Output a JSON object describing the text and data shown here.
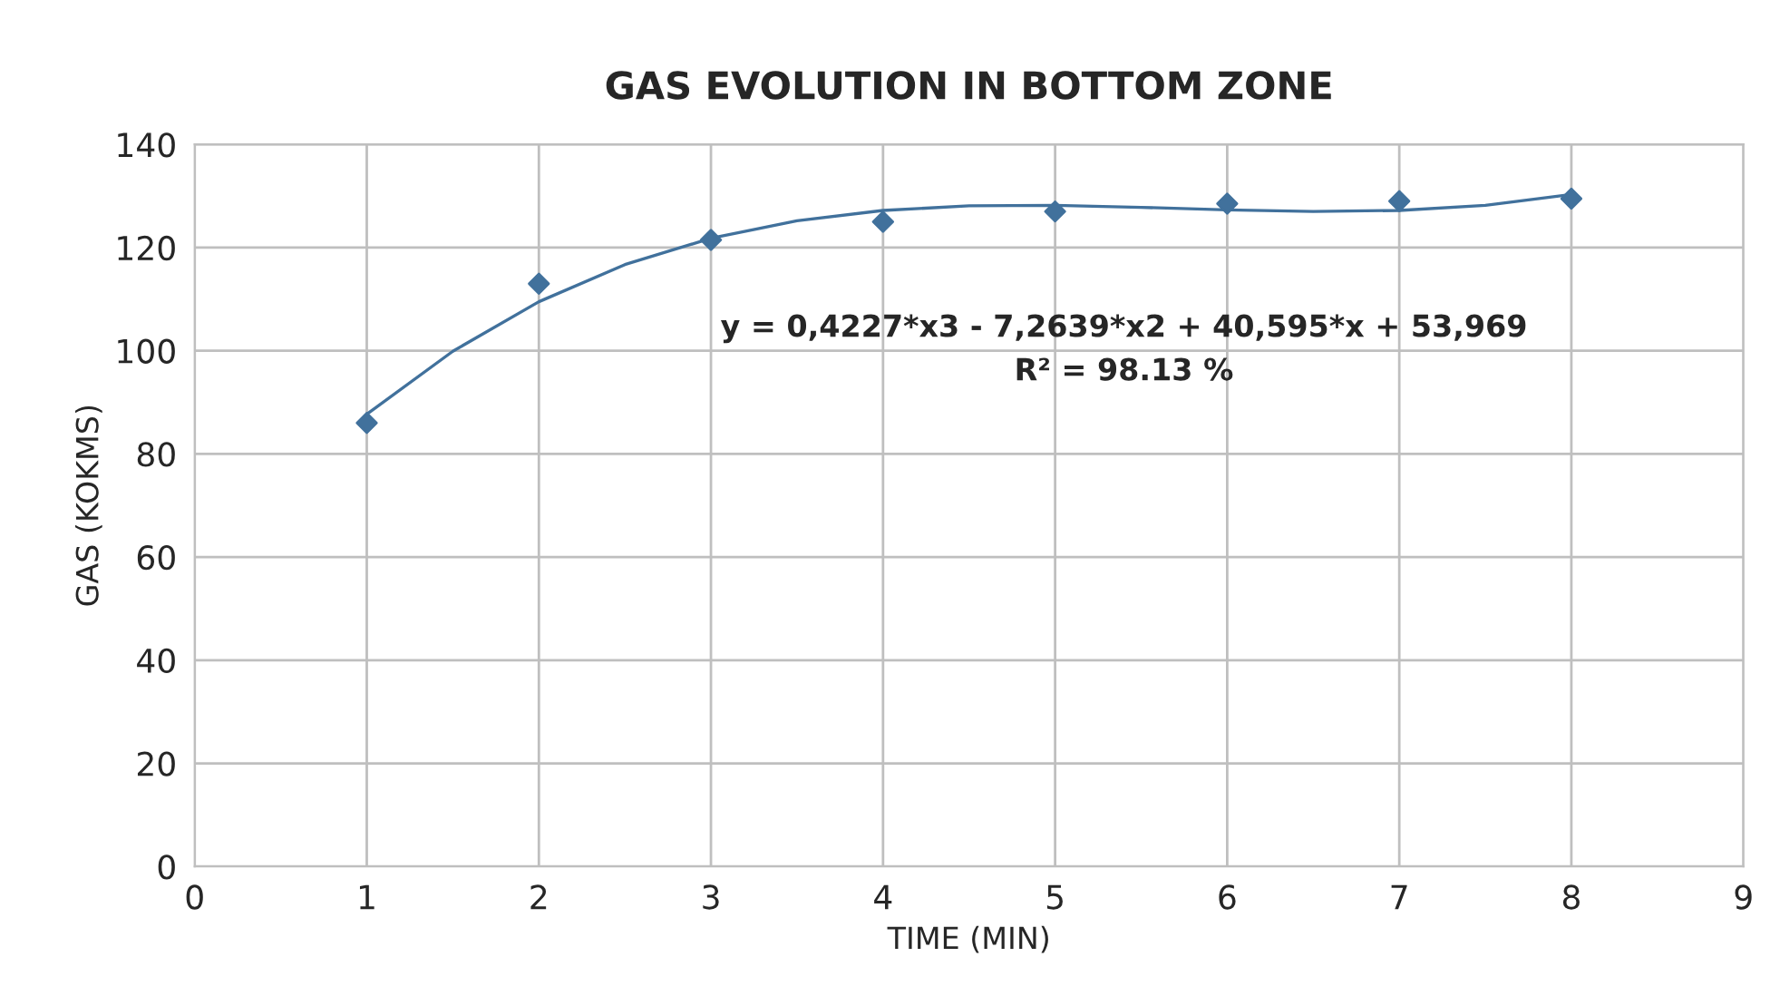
{
  "chart_data": {
    "type": "scatter",
    "title": "GAS EVOLUTION IN BOTTOM ZONE",
    "xlabel": "TIME (MIN)",
    "ylabel": "GAS (KOKMS)",
    "x": [
      1,
      2,
      3,
      4,
      5,
      6,
      7,
      8
    ],
    "series": [
      {
        "color": "#41719c",
        "marker": "diamond",
        "values": [
          86,
          113,
          121.5,
          125,
          127,
          128.5,
          129,
          129.5
        ]
      },
      {
        "type": "line",
        "color": "#41719c",
        "marker": "none",
        "x": [
          1,
          1.5,
          2,
          2.5,
          3,
          3.5,
          4,
          4.5,
          5,
          5.5,
          6,
          6.5,
          7,
          7.5,
          8
        ],
        "values": [
          87.7,
          99.9,
          109.5,
          116.7,
          121.8,
          125.2,
          127.2,
          128.1,
          128.2,
          127.8,
          127.3,
          127.0,
          127.2,
          128.2,
          130.3
        ]
      }
    ],
    "xlim": [
      0,
      9
    ],
    "xticks": [
      0,
      1,
      2,
      3,
      4,
      5,
      6,
      7,
      8,
      9
    ],
    "ylim": [
      0,
      140
    ],
    "yticks": [
      0,
      20,
      40,
      60,
      80,
      100,
      120,
      140
    ],
    "grid": true,
    "legend": false,
    "annotations": [
      "y = 0,4227*x3 - 7,2639*x2 + 40,595*x + 53,969",
      "R² = 98.13 %"
    ]
  }
}
